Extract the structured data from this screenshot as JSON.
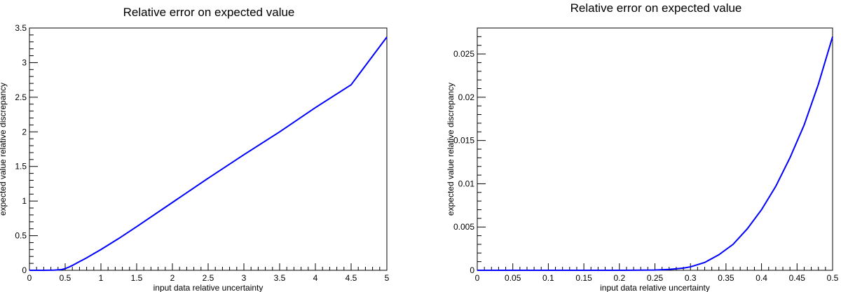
{
  "chart_data": [
    {
      "type": "line",
      "title": "Relative error on expected value",
      "xlabel": "input data relative uncertainty",
      "ylabel": "expected value relative discrepancy",
      "xlim": [
        0,
        5
      ],
      "ylim": [
        0,
        3.5
      ],
      "x_ticks": [
        "0",
        "0.5",
        "1",
        "1.5",
        "2",
        "2.5",
        "3",
        "3.5",
        "4",
        "4.5",
        "5"
      ],
      "y_ticks": [
        "0",
        "0.5",
        "1",
        "1.5",
        "2",
        "2.5",
        "3",
        "3.5"
      ],
      "grid": false,
      "color": "#0000ff",
      "series": [
        {
          "x": [
            0,
            0.2,
            0.35,
            0.45,
            0.5,
            0.55,
            0.6,
            0.7,
            0.8,
            0.9,
            1.0,
            1.25,
            1.5,
            2.0,
            2.5,
            3.0,
            3.5,
            4.0,
            4.5,
            5.0
          ],
          "y": [
            0,
            0,
            0.002,
            0.01,
            0.025,
            0.045,
            0.07,
            0.125,
            0.18,
            0.24,
            0.3,
            0.46,
            0.63,
            0.98,
            1.33,
            1.67,
            2.0,
            2.35,
            2.68,
            3.37
          ]
        }
      ]
    },
    {
      "type": "line",
      "title": "Relative error on expected value",
      "xlabel": "input data relative uncertainty",
      "ylabel": "expected value relative discrepancy",
      "xlim": [
        0,
        0.5
      ],
      "ylim": [
        0,
        0.028
      ],
      "x_ticks": [
        "0",
        "0.05",
        "0.1",
        "0.15",
        "0.2",
        "0.25",
        "0.3",
        "0.35",
        "0.4",
        "0.45",
        "0.5"
      ],
      "y_ticks": [
        "0",
        "0.005",
        "0.01",
        "0.015",
        "0.02",
        "0.025"
      ],
      "grid": false,
      "color": "#0000ff",
      "series": [
        {
          "x": [
            0,
            0.1,
            0.2,
            0.25,
            0.27,
            0.29,
            0.3,
            0.32,
            0.34,
            0.36,
            0.38,
            0.4,
            0.42,
            0.44,
            0.46,
            0.48,
            0.5
          ],
          "y": [
            0,
            0,
            0,
            3e-05,
            0.0001,
            0.00025,
            0.0004,
            0.0009,
            0.0018,
            0.003,
            0.0048,
            0.007,
            0.0097,
            0.013,
            0.0168,
            0.0215,
            0.027
          ]
        }
      ]
    }
  ]
}
